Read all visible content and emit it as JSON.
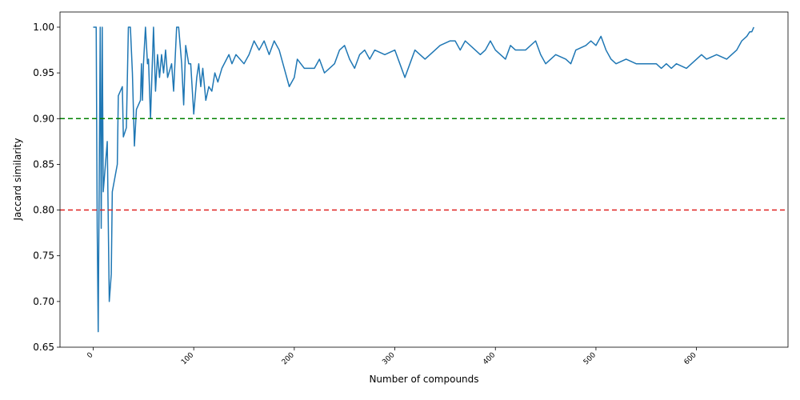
{
  "chart_data": {
    "type": "line",
    "x_label": "Number of compounds",
    "y_label": "Jaccard similarity",
    "xlim": [
      -33,
      691
    ],
    "ylim": [
      0.65,
      1.0166
    ],
    "xticks": [
      0,
      100,
      200,
      300,
      400,
      500,
      600
    ],
    "yticks": [
      0.65,
      {
        "value": 0.7,
        "label": "0.70"
      },
      0.75,
      {
        "value": 0.8,
        "label": "0.80"
      },
      0.85,
      {
        "value": 0.9,
        "label": "0.90"
      },
      0.95,
      {
        "value": 1.0,
        "label": "1.00"
      }
    ],
    "hlines": [
      {
        "y": 0.9,
        "color": "green",
        "dash": "6,4"
      },
      {
        "y": 0.8,
        "color": "#e0201f",
        "dash": "6,4"
      }
    ],
    "series": [
      {
        "color": "#1f77b4",
        "x": [
          0,
          3,
          4,
          5,
          7,
          8,
          9,
          10,
          14,
          16,
          18,
          19,
          24,
          25,
          29,
          30,
          33,
          35,
          37,
          39,
          41,
          43,
          47,
          48,
          49,
          50,
          52,
          54,
          55,
          57,
          60,
          62,
          64,
          66,
          68,
          70,
          72,
          74,
          78,
          80,
          83,
          85,
          88,
          90,
          92,
          95,
          97,
          100,
          103,
          105,
          107,
          109,
          112,
          115,
          118,
          121,
          124,
          128,
          135,
          138,
          142,
          150,
          155,
          160,
          165,
          170,
          175,
          180,
          185,
          190,
          195,
          200,
          203,
          210,
          220,
          225,
          230,
          240,
          245,
          250,
          255,
          260,
          265,
          270,
          275,
          280,
          290,
          300,
          305,
          310,
          315,
          320,
          330,
          340,
          345,
          355,
          360,
          365,
          370,
          380,
          385,
          390,
          395,
          400,
          410,
          415,
          420,
          430,
          440,
          445,
          450,
          460,
          470,
          475,
          480,
          490,
          495,
          500,
          505,
          510,
          515,
          520,
          530,
          540,
          550,
          560,
          565,
          570,
          575,
          580,
          590,
          595,
          605,
          610,
          620,
          630,
          640,
          645,
          650,
          653,
          655,
          657
        ],
        "values": [
          1.0,
          1.0,
          0.78,
          0.667,
          1.0,
          0.78,
          1.0,
          0.82,
          0.875,
          0.7,
          0.73,
          0.82,
          0.85,
          0.925,
          0.935,
          0.88,
          0.89,
          1.0,
          1.0,
          0.95,
          0.87,
          0.91,
          0.92,
          0.96,
          0.92,
          0.96,
          1.0,
          0.96,
          0.965,
          0.9,
          1.0,
          0.93,
          0.97,
          0.945,
          0.97,
          0.95,
          0.975,
          0.945,
          0.96,
          0.93,
          1.0,
          1.0,
          0.96,
          0.915,
          0.98,
          0.96,
          0.96,
          0.905,
          0.945,
          0.96,
          0.935,
          0.955,
          0.92,
          0.935,
          0.93,
          0.95,
          0.94,
          0.955,
          0.97,
          0.96,
          0.97,
          0.96,
          0.97,
          0.985,
          0.975,
          0.985,
          0.97,
          0.985,
          0.975,
          0.955,
          0.935,
          0.945,
          0.965,
          0.955,
          0.955,
          0.965,
          0.95,
          0.96,
          0.975,
          0.98,
          0.965,
          0.955,
          0.97,
          0.975,
          0.965,
          0.975,
          0.97,
          0.975,
          0.96,
          0.945,
          0.96,
          0.975,
          0.965,
          0.975,
          0.98,
          0.985,
          0.985,
          0.975,
          0.985,
          0.975,
          0.97,
          0.975,
          0.985,
          0.975,
          0.965,
          0.98,
          0.975,
          0.975,
          0.985,
          0.97,
          0.96,
          0.97,
          0.965,
          0.96,
          0.975,
          0.98,
          0.985,
          0.98,
          0.99,
          0.975,
          0.965,
          0.96,
          0.965,
          0.96,
          0.96,
          0.96,
          0.955,
          0.96,
          0.955,
          0.96,
          0.955,
          0.96,
          0.97,
          0.965,
          0.97,
          0.965,
          0.975,
          0.985,
          0.99,
          0.995,
          0.995,
          1.0
        ]
      }
    ]
  }
}
